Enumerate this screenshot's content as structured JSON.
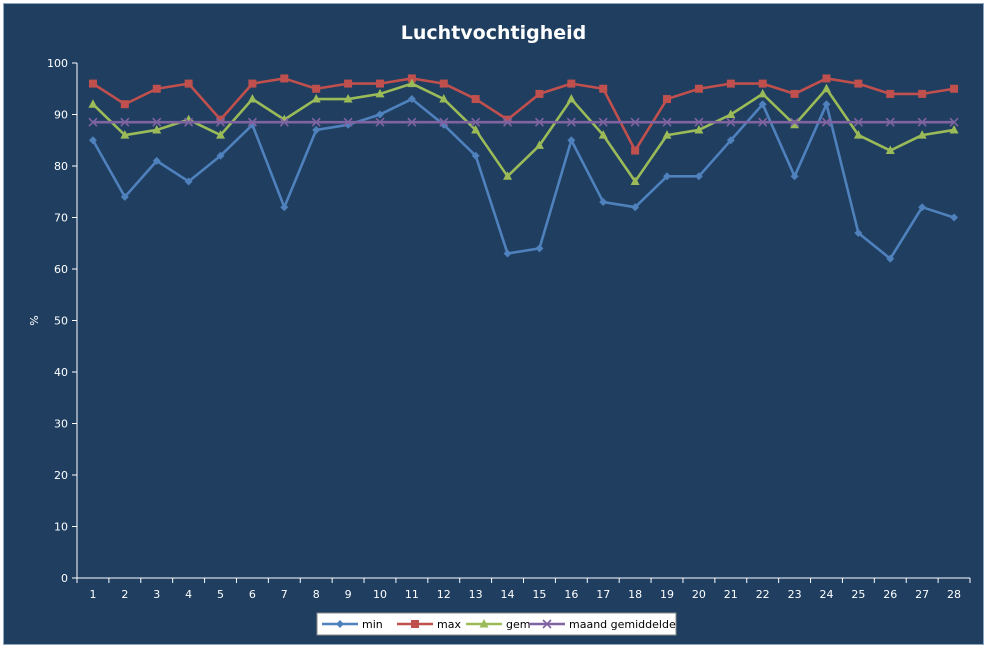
{
  "chart_data": {
    "type": "line",
    "title": "Luchtvochtigheid",
    "xlabel": "",
    "ylabel": "%",
    "ylim": [
      0,
      100
    ],
    "yticks": [
      0,
      10,
      20,
      30,
      40,
      50,
      60,
      70,
      80,
      90,
      100
    ],
    "categories": [
      "1",
      "2",
      "3",
      "4",
      "5",
      "6",
      "7",
      "8",
      "9",
      "10",
      "11",
      "12",
      "13",
      "14",
      "15",
      "16",
      "17",
      "18",
      "19",
      "20",
      "21",
      "22",
      "23",
      "24",
      "25",
      "26",
      "27",
      "28"
    ],
    "grid": false,
    "legend": "bottom",
    "series": [
      {
        "name": "min",
        "color": "#4f81bd",
        "marker": "diamond",
        "values": [
          85,
          74,
          81,
          77,
          82,
          88,
          72,
          87,
          88,
          90,
          93,
          88,
          82,
          63,
          64,
          85,
          73,
          72,
          78,
          78,
          85,
          92,
          78,
          92,
          67,
          62,
          72,
          70
        ]
      },
      {
        "name": "max",
        "color": "#c0504d",
        "marker": "square",
        "values": [
          96,
          92,
          95,
          96,
          89,
          96,
          97,
          95,
          96,
          96,
          97,
          96,
          93,
          89,
          94,
          96,
          95,
          83,
          93,
          95,
          96,
          96,
          94,
          97,
          96,
          94,
          94,
          95
        ]
      },
      {
        "name": "gem",
        "color": "#9bbb59",
        "marker": "triangle",
        "values": [
          92,
          86,
          87,
          89,
          86,
          93,
          89,
          93,
          93,
          94,
          96,
          93,
          87,
          78,
          84,
          93,
          86,
          77,
          86,
          87,
          90,
          94,
          88,
          95,
          86,
          83,
          86,
          87
        ]
      },
      {
        "name": "maand gemiddelde",
        "color": "#8064a2",
        "marker": "x",
        "values": [
          88.5,
          88.5,
          88.5,
          88.5,
          88.5,
          88.5,
          88.5,
          88.5,
          88.5,
          88.5,
          88.5,
          88.5,
          88.5,
          88.5,
          88.5,
          88.5,
          88.5,
          88.5,
          88.5,
          88.5,
          88.5,
          88.5,
          88.5,
          88.5,
          88.5,
          88.5,
          88.5,
          88.5
        ]
      }
    ]
  }
}
